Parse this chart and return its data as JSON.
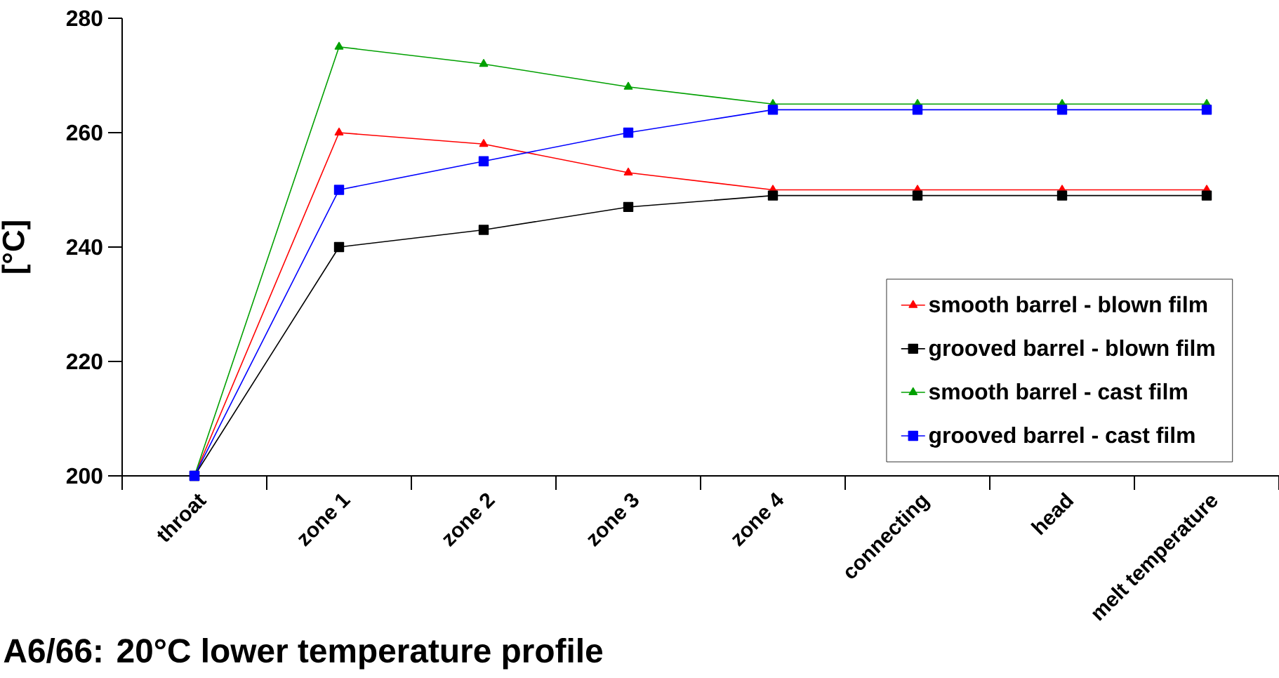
{
  "chart_data": {
    "type": "line",
    "title": "A6/66:  20°C lower temperature profile",
    "ylabel": "[°C]",
    "categories": [
      "throat",
      "zone 1",
      "zone 2",
      "zone 3",
      "zone 4",
      "connecting",
      "head",
      "melt temperature"
    ],
    "series": [
      {
        "name": "smooth barrel - blown film",
        "color": "#ff0000",
        "marker": "triangle",
        "values": [
          200,
          260,
          258,
          253,
          250,
          250,
          250,
          250
        ]
      },
      {
        "name": "grooved barrel - blown film",
        "color": "#000000",
        "marker": "square",
        "values": [
          200,
          240,
          243,
          247,
          249,
          249,
          249,
          249
        ]
      },
      {
        "name": "smooth barrel - cast film",
        "color": "#00a000",
        "marker": "triangle",
        "values": [
          200,
          275,
          272,
          268,
          265,
          265,
          265,
          265
        ]
      },
      {
        "name": "grooved barrel - cast film",
        "color": "#0000ff",
        "marker": "square",
        "values": [
          200,
          250,
          255,
          260,
          264,
          264,
          264,
          264
        ]
      }
    ],
    "ylim": [
      200,
      280
    ],
    "yticks": [
      200,
      220,
      240,
      260,
      280
    ],
    "grid": false,
    "legend": "bottom right",
    "line_style": "solid"
  }
}
